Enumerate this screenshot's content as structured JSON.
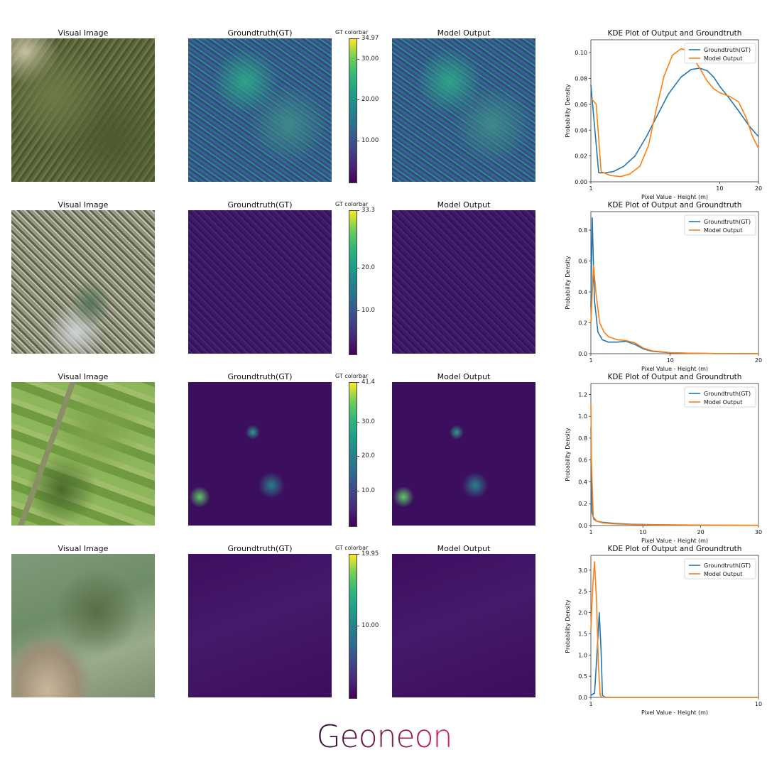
{
  "brand": {
    "name": "Geoneon",
    "colors": {
      "start": "#2b1140",
      "end": "#d61f4c"
    }
  },
  "panel_titles": {
    "visual": "Visual Image",
    "gt": "Groundtruth(GT)",
    "model": "Model Output",
    "colorbar": "GT colorbar",
    "kde": "KDE Plot of Output and Groundtruth"
  },
  "colormap": "viridis",
  "series_colors": {
    "Groundtruth(GT)": "#1f77b4",
    "Model Output": "#ff7f0e"
  },
  "rows": [
    {
      "visual_scene": "forested-hills",
      "colorbar": {
        "max_label": "34.97",
        "max": 34.97,
        "min": 0,
        "ticks": [
          "30.00",
          "20.00",
          "10.00"
        ]
      }
    },
    {
      "visual_scene": "urban-river",
      "colorbar": {
        "max_label": "33.3",
        "max": 33.3,
        "min": 0,
        "ticks": [
          "20.0",
          "10.0"
        ]
      }
    },
    {
      "visual_scene": "farmland",
      "colorbar": {
        "max_label": "41.4",
        "max": 41.4,
        "min": 0,
        "ticks": [
          "30.0",
          "20.0",
          "10.0"
        ]
      }
    },
    {
      "visual_scene": "coastal-estuary",
      "colorbar": {
        "max_label": "19.95",
        "max": 19.95,
        "min": 0,
        "ticks": [
          "10.00"
        ]
      }
    }
  ],
  "chart_data": [
    {
      "type": "line",
      "title": "KDE Plot of Output and Groundtruth",
      "xlabel": "Pixel Value - Height (m)",
      "ylabel": "Probability Density",
      "xlim": [
        1,
        20
      ],
      "ylim": [
        0,
        0.11
      ],
      "x_scale": "log",
      "xticks": [
        1,
        10,
        20
      ],
      "yticks": [
        0.0,
        0.02,
        0.04,
        0.06,
        0.08,
        0.1
      ],
      "ytick_labels": [
        "0.00",
        "0.02",
        "0.04",
        "0.06",
        "0.08",
        "0.10"
      ],
      "legend": "top-right",
      "series": [
        {
          "name": "Groundtruth(GT)",
          "x": [
            1,
            1.15,
            1.3,
            1.5,
            1.8,
            2.2,
            2.7,
            3.3,
            4,
            5,
            6,
            7,
            8,
            9,
            10,
            12,
            14,
            17,
            20
          ],
          "y": [
            0.075,
            0.007,
            0.007,
            0.008,
            0.012,
            0.02,
            0.035,
            0.052,
            0.068,
            0.081,
            0.087,
            0.088,
            0.086,
            0.081,
            0.074,
            0.064,
            0.055,
            0.043,
            0.035
          ]
        },
        {
          "name": "Model Output",
          "x": [
            1,
            1.1,
            1.2,
            1.4,
            1.7,
            2,
            2.4,
            2.8,
            3.2,
            3.7,
            4.3,
            5,
            5.5,
            6,
            7,
            8,
            9,
            10,
            12,
            14,
            16,
            18,
            20
          ],
          "y": [
            0.065,
            0.06,
            0.008,
            0.005,
            0.004,
            0.006,
            0.012,
            0.028,
            0.055,
            0.082,
            0.098,
            0.103,
            0.102,
            0.098,
            0.088,
            0.078,
            0.072,
            0.069,
            0.066,
            0.062,
            0.05,
            0.035,
            0.026
          ]
        }
      ]
    },
    {
      "type": "line",
      "title": "KDE Plot of Output and Groundtruth",
      "xlabel": "Pixel Value - Height (m)",
      "ylabel": "Probability Density",
      "xlim": [
        1,
        20
      ],
      "ylim": [
        0,
        0.92
      ],
      "xticks": [
        1,
        10,
        20
      ],
      "yticks": [
        0.0,
        0.2,
        0.4,
        0.6,
        0.8
      ],
      "ytick_labels": [
        "0.0",
        "0.2",
        "0.4",
        "0.6",
        "0.8"
      ],
      "legend": "top-right",
      "series": [
        {
          "name": "Groundtruth(GT)",
          "x": [
            1,
            1.15,
            1.4,
            1.8,
            2.3,
            3,
            4,
            5,
            6,
            7,
            8,
            10,
            12,
            15,
            20
          ],
          "y": [
            0.3,
            0.88,
            0.35,
            0.14,
            0.09,
            0.075,
            0.075,
            0.08,
            0.06,
            0.03,
            0.015,
            0.006,
            0.003,
            0.001,
            0.0
          ]
        },
        {
          "name": "Model Output",
          "x": [
            1,
            1.3,
            1.6,
            2,
            2.5,
            3,
            4,
            5,
            6,
            7,
            8,
            10,
            12,
            15,
            20
          ],
          "y": [
            0.2,
            0.57,
            0.38,
            0.2,
            0.14,
            0.11,
            0.09,
            0.085,
            0.07,
            0.035,
            0.018,
            0.007,
            0.003,
            0.001,
            0.0
          ]
        }
      ]
    },
    {
      "type": "line",
      "title": "KDE Plot of Output and Groundtruth",
      "xlabel": "Pixel Value - Height (m)",
      "ylabel": "Probability Density",
      "xlim": [
        1,
        30
      ],
      "ylim": [
        0,
        1.3
      ],
      "xticks": [
        1,
        10,
        20,
        30
      ],
      "yticks": [
        0.0,
        0.2,
        0.4,
        0.6,
        0.8,
        1.0,
        1.2
      ],
      "ytick_labels": [
        "0.0",
        "0.2",
        "0.4",
        "0.6",
        "0.8",
        "1.0",
        "1.2"
      ],
      "legend": "top-right",
      "series": [
        {
          "name": "Groundtruth(GT)",
          "x": [
            1,
            1.2,
            1.5,
            2,
            3,
            5,
            8,
            12,
            20,
            30
          ],
          "y": [
            0.9,
            0.12,
            0.06,
            0.04,
            0.03,
            0.02,
            0.012,
            0.008,
            0.004,
            0.002
          ]
        },
        {
          "name": "Model Output",
          "x": [
            1,
            1.1,
            1.4,
            2,
            3,
            5,
            8,
            12,
            20,
            30
          ],
          "y": [
            1.12,
            0.6,
            0.08,
            0.04,
            0.025,
            0.015,
            0.01,
            0.006,
            0.003,
            0.001
          ]
        }
      ]
    },
    {
      "type": "line",
      "title": "KDE Plot of Output and Groundtruth",
      "xlabel": "Pixel Value - Height (m)",
      "ylabel": "Probability Density",
      "xlim": [
        1,
        10
      ],
      "ylim": [
        0,
        3.35
      ],
      "xticks": [
        1,
        10
      ],
      "yticks": [
        0.0,
        0.5,
        1.0,
        1.5,
        2.0,
        2.5,
        3.0
      ],
      "ytick_labels": [
        "0.0",
        "0.5",
        "1.0",
        "1.5",
        "2.0",
        "2.5",
        "3.0"
      ],
      "legend": "top-right",
      "series": [
        {
          "name": "Groundtruth(GT)",
          "x": [
            1,
            1.2,
            1.35,
            1.45,
            1.55,
            1.62,
            1.7,
            1.8,
            2,
            4,
            10
          ],
          "y": [
            0.05,
            0.1,
            1.2,
            2.0,
            1.1,
            0.05,
            0.02,
            0.0,
            0.0,
            0.0,
            0.0
          ]
        },
        {
          "name": "Model Output",
          "x": [
            1,
            1.1,
            1.2,
            1.3,
            1.4,
            1.5,
            1.6,
            2,
            4,
            10
          ],
          "y": [
            1.6,
            2.6,
            3.2,
            2.3,
            0.8,
            0.05,
            0.0,
            0.0,
            0.0,
            0.0
          ]
        }
      ]
    }
  ]
}
